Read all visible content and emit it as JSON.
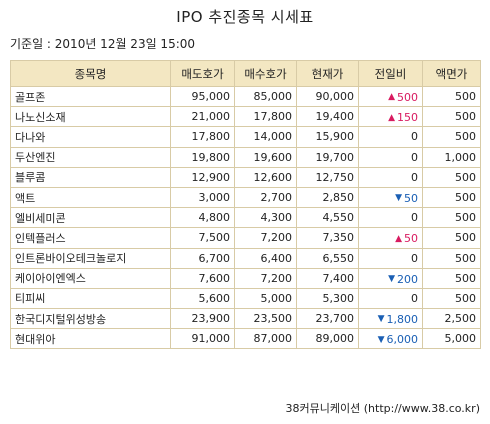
{
  "title": "IPO 추진종목 시세표",
  "base_date": "기준일 : 2010년 12월 23일 15:00",
  "table": {
    "headers": [
      "종목명",
      "매도호가",
      "매수호가",
      "현재가",
      "전일비",
      "액면가"
    ],
    "rows": [
      {
        "name": "골프존",
        "sell": "95,000",
        "buy": "85,000",
        "current": "90,000",
        "change": "500",
        "dir": "up",
        "par": "500"
      },
      {
        "name": "나노신소재",
        "sell": "21,000",
        "buy": "17,800",
        "current": "19,400",
        "change": "150",
        "dir": "up",
        "par": "500"
      },
      {
        "name": "다나와",
        "sell": "17,800",
        "buy": "14,000",
        "current": "15,900",
        "change": "0",
        "dir": "none",
        "par": "500"
      },
      {
        "name": "두산엔진",
        "sell": "19,800",
        "buy": "19,600",
        "current": "19,700",
        "change": "0",
        "dir": "none",
        "par": "1,000"
      },
      {
        "name": "블루콤",
        "sell": "12,900",
        "buy": "12,600",
        "current": "12,750",
        "change": "0",
        "dir": "none",
        "par": "500"
      },
      {
        "name": "액트",
        "sell": "3,000",
        "buy": "2,700",
        "current": "2,850",
        "change": "50",
        "dir": "down",
        "par": "500"
      },
      {
        "name": "엘비세미콘",
        "sell": "4,800",
        "buy": "4,300",
        "current": "4,550",
        "change": "0",
        "dir": "none",
        "par": "500"
      },
      {
        "name": "인텍플러스",
        "sell": "7,500",
        "buy": "7,200",
        "current": "7,350",
        "change": "50",
        "dir": "up",
        "par": "500"
      },
      {
        "name": "인트론바이오테크놀로지",
        "sell": "6,700",
        "buy": "6,400",
        "current": "6,550",
        "change": "0",
        "dir": "none",
        "par": "500"
      },
      {
        "name": "케이아이엔엑스",
        "sell": "7,600",
        "buy": "7,200",
        "current": "7,400",
        "change": "200",
        "dir": "down",
        "par": "500"
      },
      {
        "name": "티피씨",
        "sell": "5,600",
        "buy": "5,000",
        "current": "5,300",
        "change": "0",
        "dir": "none",
        "par": "500"
      },
      {
        "name": "한국디지털위성방송",
        "sell": "23,900",
        "buy": "23,500",
        "current": "23,700",
        "change": "1,800",
        "dir": "down",
        "par": "2,500"
      },
      {
        "name": "현대위아",
        "sell": "91,000",
        "buy": "87,000",
        "current": "89,000",
        "change": "6,000",
        "dir": "down",
        "par": "5,000"
      }
    ]
  },
  "colors": {
    "up": "#d81b60",
    "down": "#1a5fb4",
    "header_bg": "#f3e7c2",
    "border": "#d8cba6"
  },
  "icons": {
    "up": "triangle-up-icon",
    "down": "triangle-down-icon"
  },
  "source": "38커뮤니케이션 (http://www.38.co.kr)"
}
